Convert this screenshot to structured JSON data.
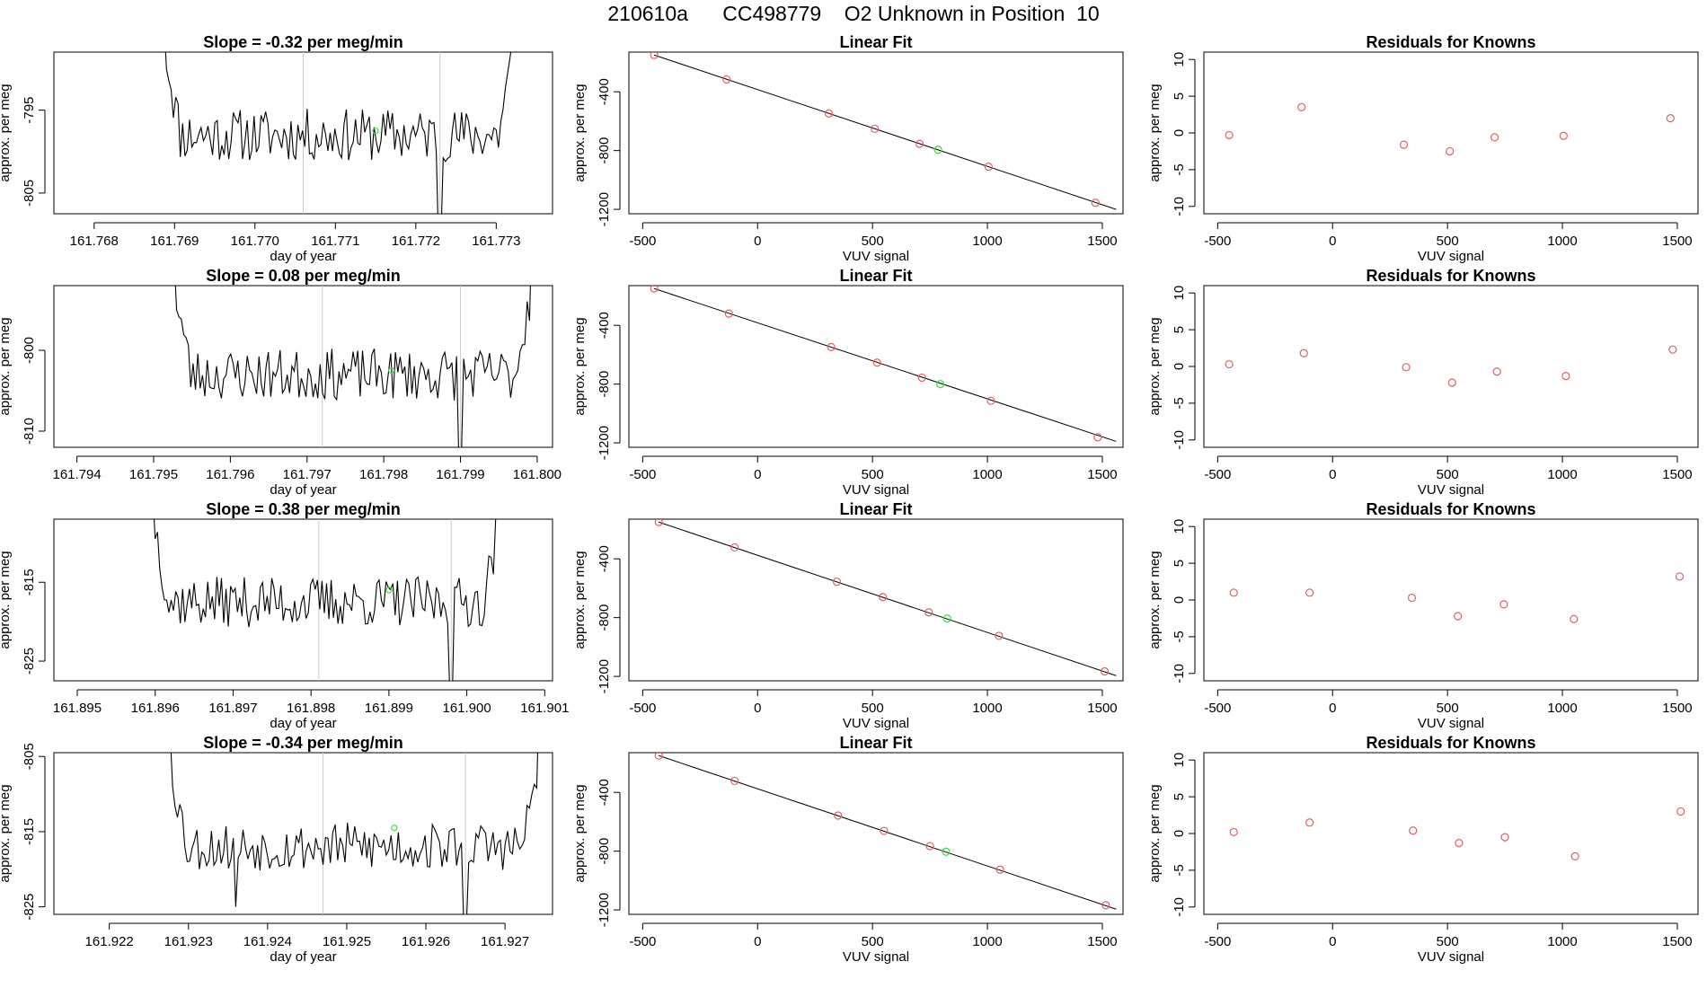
{
  "header": {
    "suptitle": "210610a      CC498779    O2 Unknown in Position  10"
  },
  "colors": {
    "line": "#000000",
    "known_point": "#e06060",
    "unknown_point": "#44dd44",
    "marker_line": "#cccccc"
  },
  "chart_data": [
    {
      "type": "line",
      "row": 1,
      "col": 1,
      "title": "Slope =  -0.32  per meg/min",
      "xlabel": "day of year",
      "ylabel": "approx. per meg",
      "xlim": [
        161.7675,
        161.7737
      ],
      "ylim": [
        -807.5,
        -788
      ],
      "xticks": [
        "161.768",
        "161.769",
        "161.770",
        "161.771",
        "161.772",
        "161.773"
      ],
      "xtick_values": [
        161.768,
        161.769,
        161.77,
        161.771,
        161.772,
        161.773
      ],
      "yticks": [
        "-795",
        "-805"
      ],
      "ytick_values": [
        -795,
        -805
      ],
      "vlines": [
        161.7706,
        161.7723
      ],
      "trace_start": 161.7689,
      "trace_end": 161.7732,
      "trace_level": -798,
      "trace_noise": 3.2,
      "trace_spikes": [
        {
          "x": 161.7723,
          "y": -811
        }
      ],
      "seed": 11,
      "unknown_point": {
        "x": 161.7715,
        "y": -797.5
      }
    },
    {
      "type": "scatter",
      "row": 1,
      "col": 2,
      "title": "Linear Fit",
      "xlabel": "VUV signal",
      "ylabel": "approx. per meg",
      "xlim": [
        -560,
        1590
      ],
      "ylim": [
        -1230,
        -130
      ],
      "xticks": [
        "-500",
        "0",
        "500",
        "1000",
        "1500"
      ],
      "xtick_values": [
        -500,
        0,
        500,
        1000,
        1500
      ],
      "yticks": [
        "-400",
        "-800",
        "-1200"
      ],
      "ytick_values": [
        -400,
        -800,
        -1200
      ],
      "fit_line": {
        "x": [
          -450,
          1560
        ],
        "y": [
          -150,
          -1200
        ]
      },
      "known_points": {
        "x": [
          -450,
          -135,
          310,
          510,
          705,
          1005,
          1470
        ],
        "y": [
          -150,
          -316,
          -548,
          -652,
          -754,
          -910,
          -1155
        ]
      },
      "unknown_point": {
        "x": 785,
        "y": -795
      }
    },
    {
      "type": "scatter",
      "row": 1,
      "col": 3,
      "title": "Residuals for Knowns",
      "xlabel": "VUV signal",
      "ylabel": "approx. per meg",
      "xlim": [
        -560,
        1590
      ],
      "ylim": [
        -11,
        11
      ],
      "xticks": [
        "-500",
        "0",
        "500",
        "1000",
        "1500"
      ],
      "xtick_values": [
        -500,
        0,
        500,
        1000,
        1500
      ],
      "yticks": [
        "10",
        "5",
        "0",
        "-5",
        "-10"
      ],
      "ytick_values": [
        10,
        5,
        0,
        -5,
        -10
      ],
      "known_points": {
        "x": [
          -450,
          -135,
          310,
          510,
          705,
          1005,
          1470
        ],
        "y": [
          -0.3,
          3.5,
          -1.6,
          -2.5,
          -0.6,
          -0.4,
          2.0
        ]
      }
    },
    {
      "type": "line",
      "row": 2,
      "col": 1,
      "title": "Slope =  0.08  per meg/min",
      "xlabel": "day of year",
      "ylabel": "approx. per meg",
      "xlim": [
        161.7937,
        161.8002
      ],
      "ylim": [
        -812,
        -792
      ],
      "xticks": [
        "161.794",
        "161.795",
        "161.796",
        "161.797",
        "161.798",
        "161.799",
        "161.800"
      ],
      "xtick_values": [
        161.794,
        161.795,
        161.796,
        161.797,
        161.798,
        161.799,
        161.8
      ],
      "yticks": [
        "-800",
        "-810"
      ],
      "ytick_values": [
        -800,
        -810
      ],
      "vlines": [
        161.7972,
        161.799
      ],
      "trace_start": 161.7953,
      "trace_end": 161.7999,
      "trace_level": -803,
      "trace_noise": 3.2,
      "trace_spikes": [
        {
          "x": 161.799,
          "y": -814
        }
      ],
      "seed": 23,
      "unknown_point": {
        "x": 161.7981,
        "y": -802.5
      }
    },
    {
      "type": "scatter",
      "row": 2,
      "col": 2,
      "title": "Linear Fit",
      "xlabel": "VUV signal",
      "ylabel": "approx. per meg",
      "xlim": [
        -560,
        1590
      ],
      "ylim": [
        -1230,
        -130
      ],
      "xticks": [
        "-500",
        "0",
        "500",
        "1000",
        "1500"
      ],
      "xtick_values": [
        -500,
        0,
        500,
        1000,
        1500
      ],
      "yticks": [
        "-400",
        "-800",
        "-1200"
      ],
      "ytick_values": [
        -400,
        -800,
        -1200
      ],
      "fit_line": {
        "x": [
          -450,
          1560
        ],
        "y": [
          -150,
          -1190
        ]
      },
      "known_points": {
        "x": [
          -450,
          -125,
          320,
          520,
          715,
          1015,
          1480
        ],
        "y": [
          -150,
          -320,
          -548,
          -654,
          -756,
          -914,
          -1162
        ]
      },
      "unknown_point": {
        "x": 795,
        "y": -800
      }
    },
    {
      "type": "scatter",
      "row": 2,
      "col": 3,
      "title": "Residuals for Knowns",
      "xlabel": "VUV signal",
      "ylabel": "approx. per meg",
      "xlim": [
        -560,
        1590
      ],
      "ylim": [
        -11,
        11
      ],
      "xticks": [
        "-500",
        "0",
        "500",
        "1000",
        "1500"
      ],
      "xtick_values": [
        -500,
        0,
        500,
        1000,
        1500
      ],
      "yticks": [
        "10",
        "5",
        "0",
        "-5",
        "-10"
      ],
      "ytick_values": [
        10,
        5,
        0,
        -5,
        -10
      ],
      "known_points": {
        "x": [
          -450,
          -125,
          320,
          520,
          715,
          1015,
          1480
        ],
        "y": [
          0.3,
          1.8,
          -0.1,
          -2.2,
          -0.7,
          -1.3,
          2.3
        ]
      }
    },
    {
      "type": "line",
      "row": 3,
      "col": 1,
      "title": "Slope =  0.38  per meg/min",
      "xlabel": "day of year",
      "ylabel": "approx. per meg",
      "xlim": [
        161.8947,
        161.9011
      ],
      "ylim": [
        -827.5,
        -807
      ],
      "xticks": [
        "161.895",
        "161.896",
        "161.897",
        "161.898",
        "161.899",
        "161.900",
        "161.901"
      ],
      "xtick_values": [
        161.895,
        161.896,
        161.897,
        161.898,
        161.899,
        161.9,
        161.901
      ],
      "yticks": [
        "-815",
        "-825"
      ],
      "ytick_values": [
        -815,
        -825
      ],
      "vlines": [
        161.8981,
        161.8998
      ],
      "trace_start": 161.896,
      "trace_end": 161.9004,
      "trace_level": -817.5,
      "trace_noise": 3.2,
      "trace_spikes": [
        {
          "x": 161.8998,
          "y": -830
        }
      ],
      "seed": 37,
      "unknown_point": {
        "x": 161.899,
        "y": -816
      }
    },
    {
      "type": "scatter",
      "row": 3,
      "col": 2,
      "title": "Linear Fit",
      "xlabel": "VUV signal",
      "ylabel": "approx. per meg",
      "xlim": [
        -560,
        1590
      ],
      "ylim": [
        -1230,
        -130
      ],
      "xticks": [
        "-500",
        "0",
        "500",
        "1000",
        "1500"
      ],
      "xtick_values": [
        -500,
        0,
        500,
        1000,
        1500
      ],
      "yticks": [
        "-400",
        "-800",
        "-1200"
      ],
      "ytick_values": [
        -400,
        -800,
        -1200
      ],
      "fit_line": {
        "x": [
          -430,
          1560
        ],
        "y": [
          -150,
          -1195
        ]
      },
      "known_points": {
        "x": [
          -430,
          -100,
          345,
          545,
          745,
          1050,
          1510
        ],
        "y": [
          -150,
          -322,
          -556,
          -660,
          -764,
          -924,
          -1166
        ]
      },
      "unknown_point": {
        "x": 825,
        "y": -806
      }
    },
    {
      "type": "scatter",
      "row": 3,
      "col": 3,
      "title": "Residuals for Knowns",
      "xlabel": "VUV signal",
      "ylabel": "approx. per meg",
      "xlim": [
        -560,
        1590
      ],
      "ylim": [
        -11,
        11
      ],
      "xticks": [
        "-500",
        "0",
        "500",
        "1000",
        "1500"
      ],
      "xtick_values": [
        -500,
        0,
        500,
        1000,
        1500
      ],
      "yticks": [
        "10",
        "5",
        "0",
        "-5",
        "-10"
      ],
      "ytick_values": [
        10,
        5,
        0,
        -5,
        -10
      ],
      "known_points": {
        "x": [
          -430,
          -100,
          345,
          545,
          745,
          1050,
          1510
        ],
        "y": [
          1.0,
          1.0,
          0.3,
          -2.2,
          -0.6,
          -2.6,
          3.2
        ]
      }
    },
    {
      "type": "line",
      "row": 4,
      "col": 1,
      "title": "Slope =  -0.34  per meg/min",
      "xlabel": "day of year",
      "ylabel": "approx. per meg",
      "xlim": [
        161.9213,
        161.9276
      ],
      "ylim": [
        -826,
        -804.5
      ],
      "xticks": [
        "161.922",
        "161.923",
        "161.924",
        "161.925",
        "161.926",
        "161.927"
      ],
      "xtick_values": [
        161.922,
        161.923,
        161.924,
        161.925,
        161.926,
        161.927
      ],
      "yticks": [
        "-805",
        "-815",
        "-825"
      ],
      "ytick_values": [
        -805,
        -815,
        -825
      ],
      "vlines": [
        161.9247,
        161.9265
      ],
      "trace_start": 161.9228,
      "trace_end": 161.9274,
      "trace_level": -817,
      "trace_noise": 3.2,
      "trace_spikes": [
        {
          "x": 161.9236,
          "y": -825
        },
        {
          "x": 161.9265,
          "y": -828
        }
      ],
      "seed": 53,
      "unknown_point": {
        "x": 161.9256,
        "y": -814.5
      }
    },
    {
      "type": "scatter",
      "row": 4,
      "col": 2,
      "title": "Linear Fit",
      "xlabel": "VUV signal",
      "ylabel": "approx. per meg",
      "xlim": [
        -560,
        1590
      ],
      "ylim": [
        -1230,
        -130
      ],
      "xticks": [
        "-500",
        "0",
        "500",
        "1000",
        "1500"
      ],
      "xtick_values": [
        -500,
        0,
        500,
        1000,
        1500
      ],
      "yticks": [
        "-400",
        "-800",
        "-1200"
      ],
      "ytick_values": [
        -400,
        -800,
        -1200
      ],
      "fit_line": {
        "x": [
          -430,
          1560
        ],
        "y": [
          -150,
          -1195
        ]
      },
      "known_points": {
        "x": [
          -430,
          -100,
          350,
          550,
          750,
          1055,
          1515
        ],
        "y": [
          -150,
          -322,
          -558,
          -662,
          -766,
          -926,
          -1168
        ]
      },
      "unknown_point": {
        "x": 820,
        "y": -804
      }
    },
    {
      "type": "scatter",
      "row": 4,
      "col": 3,
      "title": "Residuals for Knowns",
      "xlabel": "VUV signal",
      "ylabel": "approx. per meg",
      "xlim": [
        -560,
        1590
      ],
      "ylim": [
        -11,
        11
      ],
      "xticks": [
        "-500",
        "0",
        "500",
        "1000",
        "1500"
      ],
      "xtick_values": [
        -500,
        0,
        500,
        1000,
        1500
      ],
      "yticks": [
        "10",
        "5",
        "0",
        "-5",
        "-10"
      ],
      "ytick_values": [
        10,
        5,
        0,
        -5,
        -10
      ],
      "known_points": {
        "x": [
          -430,
          -100,
          350,
          550,
          750,
          1055,
          1515
        ],
        "y": [
          0.2,
          1.5,
          0.4,
          -1.3,
          -0.5,
          -3.1,
          3.0
        ]
      }
    }
  ]
}
